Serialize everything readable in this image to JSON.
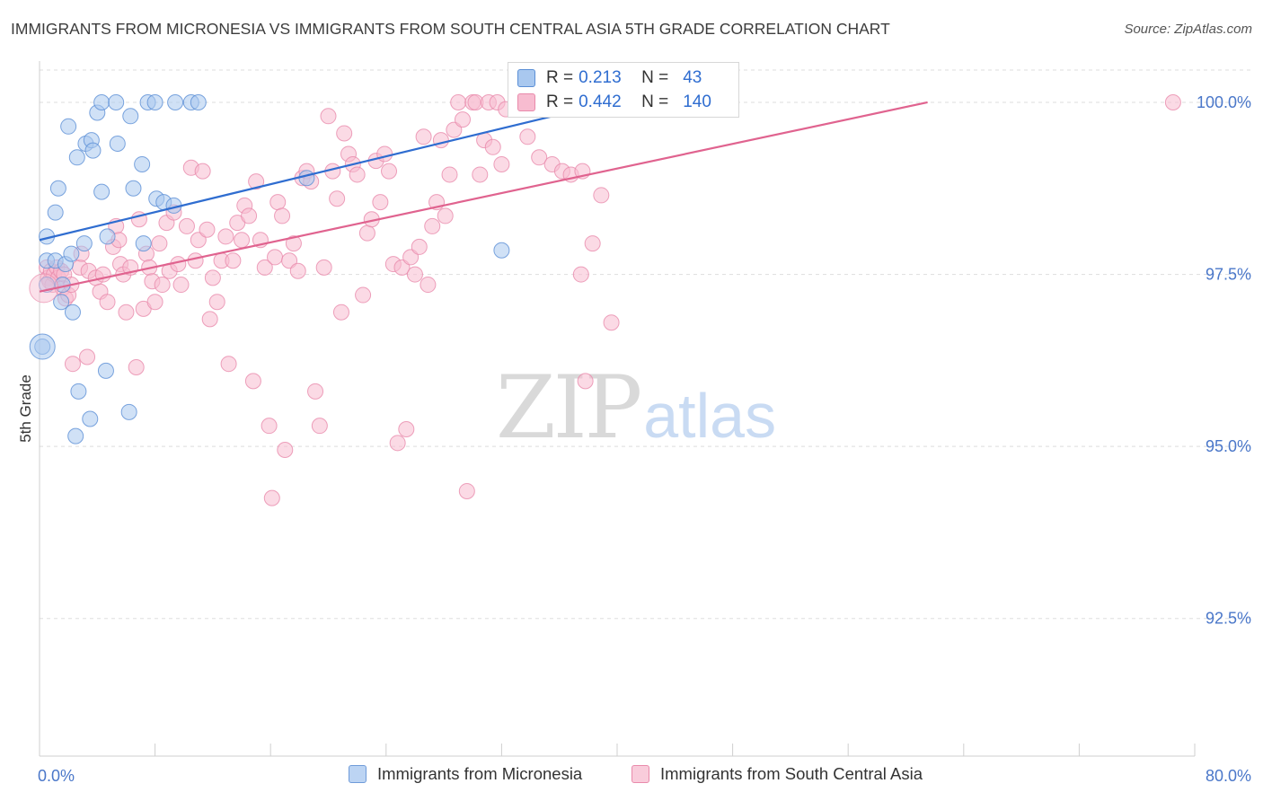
{
  "title": "IMMIGRANTS FROM MICRONESIA VS IMMIGRANTS FROM SOUTH CENTRAL ASIA 5TH GRADE CORRELATION CHART",
  "source": "Source: ZipAtlas.com",
  "watermark": {
    "zip": "ZIP",
    "atlas": "atlas"
  },
  "legend_top": {
    "rows": [
      {
        "r_label": "R =",
        "r_value": "0.213",
        "n_label": "N =",
        "n_value": "43"
      },
      {
        "r_label": "R =",
        "r_value": "0.442",
        "n_label": "N =",
        "n_value": "140"
      }
    ]
  },
  "legend_bottom": {
    "series1": "Immigrants from Micronesia",
    "series2": "Immigrants from South Central Asia"
  },
  "colors": {
    "series1_fill": "#a9c8ef",
    "series1_stroke": "#5b8fd6",
    "series1_line": "#2f6dd0",
    "series2_fill": "#f7bcd0",
    "series2_stroke": "#e98aab",
    "series2_line": "#e0638f",
    "grid": "#dddddd",
    "axis_text": "#4a77c9"
  },
  "chart_data": {
    "type": "scatter",
    "title": "IMMIGRANTS FROM MICRONESIA VS IMMIGRANTS FROM SOUTH CENTRAL ASIA 5TH GRADE CORRELATION CHART",
    "xlabel": "",
    "ylabel": "5th Grade",
    "xlim": [
      0,
      80
    ],
    "ylim": [
      90.5,
      100.6
    ],
    "x_tick_labels": [
      "0.0%",
      "80.0%"
    ],
    "y_ticks": [
      92.5,
      95.0,
      97.5,
      100.0
    ],
    "y_tick_labels": [
      "92.5%",
      "95.0%",
      "97.5%",
      "100.0%"
    ],
    "grid": true,
    "legend_position": "top-center",
    "series": [
      {
        "name": "Immigrants from Micronesia",
        "R": 0.213,
        "N": 43,
        "trend": {
          "x": [
            0,
            39.5
          ],
          "y": [
            98.0,
            100.0
          ]
        },
        "points": [
          [
            0.5,
            98.05
          ],
          [
            0.5,
            97.7
          ],
          [
            0.5,
            97.35
          ],
          [
            0.2,
            96.45
          ],
          [
            1.1,
            97.7
          ],
          [
            1.1,
            98.4
          ],
          [
            1.3,
            98.75
          ],
          [
            1.5,
            97.1
          ],
          [
            1.8,
            97.65
          ],
          [
            2.0,
            99.65
          ],
          [
            2.2,
            97.8
          ],
          [
            2.3,
            96.95
          ],
          [
            2.5,
            95.15
          ],
          [
            2.6,
            99.2
          ],
          [
            2.7,
            95.8
          ],
          [
            3.1,
            97.95
          ],
          [
            3.2,
            99.4
          ],
          [
            3.5,
            95.4
          ],
          [
            3.6,
            99.45
          ],
          [
            3.7,
            99.3
          ],
          [
            4.0,
            99.85
          ],
          [
            4.3,
            98.7
          ],
          [
            4.3,
            100.0
          ],
          [
            4.6,
            96.1
          ],
          [
            4.7,
            98.05
          ],
          [
            5.3,
            100.0
          ],
          [
            5.4,
            99.4
          ],
          [
            6.2,
            95.5
          ],
          [
            6.3,
            99.8
          ],
          [
            6.5,
            98.75
          ],
          [
            7.1,
            99.1
          ],
          [
            7.2,
            97.95
          ],
          [
            7.5,
            100.0
          ],
          [
            8.0,
            100.0
          ],
          [
            8.1,
            98.6
          ],
          [
            8.6,
            98.55
          ],
          [
            9.3,
            98.5
          ],
          [
            9.4,
            100.0
          ],
          [
            10.5,
            100.0
          ],
          [
            11.0,
            100.0
          ],
          [
            18.5,
            98.9
          ],
          [
            32.0,
            97.85
          ],
          [
            1.6,
            97.35
          ]
        ]
      },
      {
        "name": "Immigrants from South Central Asia",
        "R": 0.442,
        "N": 140,
        "trend": {
          "x": [
            0,
            61.5
          ],
          "y": [
            97.25,
            100.0
          ]
        },
        "points": [
          [
            0.5,
            97.6
          ],
          [
            0.6,
            97.45
          ],
          [
            0.7,
            97.4
          ],
          [
            0.8,
            97.55
          ],
          [
            0.9,
            97.35
          ],
          [
            1.0,
            97.5
          ],
          [
            1.2,
            97.6
          ],
          [
            1.3,
            97.45
          ],
          [
            1.5,
            97.55
          ],
          [
            1.6,
            97.3
          ],
          [
            1.7,
            97.5
          ],
          [
            1.8,
            97.15
          ],
          [
            2.0,
            97.2
          ],
          [
            2.2,
            97.35
          ],
          [
            2.3,
            96.2
          ],
          [
            2.8,
            97.6
          ],
          [
            2.9,
            97.8
          ],
          [
            3.3,
            96.3
          ],
          [
            3.4,
            97.55
          ],
          [
            3.9,
            97.45
          ],
          [
            4.2,
            97.25
          ],
          [
            4.4,
            97.5
          ],
          [
            4.7,
            97.1
          ],
          [
            5.1,
            97.9
          ],
          [
            5.3,
            98.2
          ],
          [
            5.5,
            98.0
          ],
          [
            5.6,
            97.65
          ],
          [
            5.8,
            97.5
          ],
          [
            6.0,
            96.95
          ],
          [
            6.3,
            97.6
          ],
          [
            6.7,
            96.15
          ],
          [
            6.9,
            98.3
          ],
          [
            7.2,
            97.0
          ],
          [
            7.4,
            97.8
          ],
          [
            7.6,
            97.6
          ],
          [
            7.8,
            97.4
          ],
          [
            8.0,
            97.1
          ],
          [
            8.3,
            97.95
          ],
          [
            8.5,
            97.35
          ],
          [
            8.8,
            98.25
          ],
          [
            9.0,
            97.55
          ],
          [
            9.3,
            98.4
          ],
          [
            9.6,
            97.65
          ],
          [
            9.8,
            97.35
          ],
          [
            10.2,
            98.2
          ],
          [
            10.5,
            99.05
          ],
          [
            10.8,
            97.7
          ],
          [
            11.0,
            98.0
          ],
          [
            11.3,
            99.0
          ],
          [
            11.6,
            98.15
          ],
          [
            11.8,
            96.85
          ],
          [
            12.0,
            97.45
          ],
          [
            12.3,
            97.1
          ],
          [
            12.6,
            97.7
          ],
          [
            12.9,
            98.05
          ],
          [
            13.1,
            96.2
          ],
          [
            13.4,
            97.7
          ],
          [
            13.7,
            98.25
          ],
          [
            14.0,
            98.0
          ],
          [
            14.2,
            98.5
          ],
          [
            14.5,
            98.35
          ],
          [
            14.8,
            95.95
          ],
          [
            15.0,
            98.85
          ],
          [
            15.3,
            98.0
          ],
          [
            15.6,
            97.6
          ],
          [
            15.9,
            95.3
          ],
          [
            16.1,
            94.25
          ],
          [
            16.3,
            97.75
          ],
          [
            16.5,
            98.55
          ],
          [
            16.8,
            98.35
          ],
          [
            17.0,
            94.95
          ],
          [
            17.3,
            97.7
          ],
          [
            17.6,
            97.95
          ],
          [
            17.9,
            97.55
          ],
          [
            18.2,
            98.9
          ],
          [
            18.5,
            99.0
          ],
          [
            18.8,
            98.85
          ],
          [
            19.1,
            95.8
          ],
          [
            19.4,
            95.3
          ],
          [
            19.7,
            97.6
          ],
          [
            20.0,
            99.8
          ],
          [
            20.3,
            99.0
          ],
          [
            20.6,
            98.6
          ],
          [
            20.9,
            96.95
          ],
          [
            21.1,
            99.55
          ],
          [
            21.4,
            99.25
          ],
          [
            21.7,
            99.1
          ],
          [
            22.0,
            98.95
          ],
          [
            22.4,
            97.2
          ],
          [
            22.7,
            98.1
          ],
          [
            23.0,
            98.3
          ],
          [
            23.3,
            99.15
          ],
          [
            23.6,
            98.55
          ],
          [
            23.9,
            99.25
          ],
          [
            24.2,
            99.0
          ],
          [
            24.5,
            97.65
          ],
          [
            24.8,
            95.05
          ],
          [
            25.1,
            97.6
          ],
          [
            25.4,
            95.25
          ],
          [
            25.7,
            97.75
          ],
          [
            26.0,
            97.5
          ],
          [
            26.3,
            97.9
          ],
          [
            26.6,
            99.5
          ],
          [
            26.9,
            97.35
          ],
          [
            27.2,
            98.2
          ],
          [
            27.5,
            98.55
          ],
          [
            27.8,
            99.45
          ],
          [
            28.1,
            98.35
          ],
          [
            28.4,
            98.95
          ],
          [
            28.7,
            99.6
          ],
          [
            29.0,
            100.0
          ],
          [
            29.3,
            99.75
          ],
          [
            29.6,
            94.35
          ],
          [
            30.0,
            100.0
          ],
          [
            30.2,
            100.0
          ],
          [
            30.5,
            98.95
          ],
          [
            30.8,
            99.45
          ],
          [
            31.1,
            100.0
          ],
          [
            31.4,
            99.35
          ],
          [
            31.7,
            100.0
          ],
          [
            32.0,
            99.1
          ],
          [
            32.3,
            99.9
          ],
          [
            33.2,
            100.0
          ],
          [
            33.8,
            99.5
          ],
          [
            34.6,
            99.2
          ],
          [
            35.5,
            99.1
          ],
          [
            36.2,
            99.0
          ],
          [
            36.8,
            98.95
          ],
          [
            37.5,
            97.5
          ],
          [
            37.8,
            95.95
          ],
          [
            37.6,
            99.0
          ],
          [
            38.3,
            97.95
          ],
          [
            38.9,
            98.65
          ],
          [
            39.6,
            96.8
          ],
          [
            41.4,
            100.0
          ],
          [
            78.5,
            100.0
          ]
        ]
      }
    ]
  },
  "axes": {
    "ylabel": "5th Grade",
    "x_left": "0.0%",
    "x_right": "80.0%"
  }
}
